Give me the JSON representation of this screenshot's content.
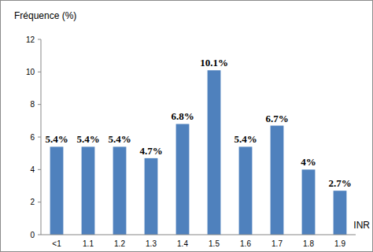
{
  "chart_data": {
    "type": "bar",
    "y_label": "Fréquence (%)",
    "x_label": "INR",
    "categories": [
      "<1",
      "1.1",
      "1.2",
      "1.3",
      "1.4",
      "1.5",
      "1.6",
      "1.7",
      "1.8",
      "1.9"
    ],
    "values": [
      5.4,
      5.4,
      5.4,
      4.7,
      6.8,
      10.1,
      5.4,
      6.7,
      4,
      2.7
    ],
    "value_labels": [
      "5.4%",
      "5.4%",
      "5.4%",
      "4.7%",
      "6.8%",
      "10.1%",
      "5.4%",
      "6.7%",
      "4%",
      "2.7%"
    ],
    "color": "#4f81bd",
    "ylim": [
      0,
      12
    ],
    "yticks": [
      0,
      2,
      4,
      6,
      8,
      10,
      12
    ],
    "grid": false,
    "data_labels": true
  }
}
